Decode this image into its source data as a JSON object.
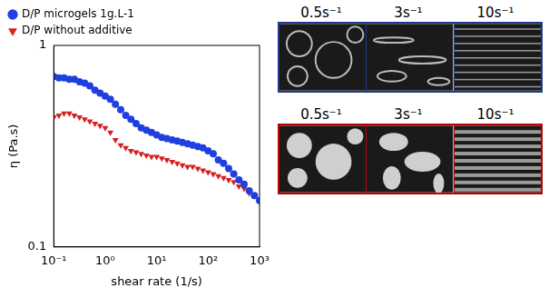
{
  "chart_data": {
    "type": "scatter",
    "x_label": "shear rate (1/s)",
    "y_label": "η (Pa.s)",
    "log": true,
    "grid": false,
    "legend": "top",
    "xlim": [
      0.1,
      1000
    ],
    "ylim": [
      0.1,
      1
    ],
    "xticks": [
      {
        "value": 0.1,
        "label": "10⁻¹"
      },
      {
        "value": 1,
        "label": "10⁰"
      },
      {
        "value": 10,
        "label": "10¹"
      },
      {
        "value": 100,
        "label": "10²"
      },
      {
        "value": 1000,
        "label": "10³"
      }
    ],
    "yticks": [
      0.1,
      1
    ],
    "x": [
      0.1,
      0.126,
      0.158,
      0.2,
      0.251,
      0.316,
      0.398,
      0.501,
      0.631,
      0.794,
      1,
      1.26,
      1.58,
      2,
      2.51,
      3.16,
      3.98,
      5.01,
      6.31,
      7.94,
      10,
      12.6,
      15.8,
      20,
      25.1,
      31.6,
      39.8,
      50.1,
      63.1,
      79.4,
      100,
      126,
      158,
      200,
      251,
      316,
      398,
      501,
      631,
      794,
      1000
    ],
    "series": [
      {
        "name": "D/P microgels 1g.L-1",
        "color": "#1f3fe0",
        "marker": "circle",
        "values": [
          0.7,
          0.69,
          0.69,
          0.68,
          0.68,
          0.66,
          0.65,
          0.63,
          0.6,
          0.58,
          0.56,
          0.54,
          0.51,
          0.48,
          0.45,
          0.43,
          0.41,
          0.39,
          0.38,
          0.37,
          0.36,
          0.35,
          0.345,
          0.34,
          0.335,
          0.33,
          0.325,
          0.32,
          0.315,
          0.31,
          0.3,
          0.29,
          0.27,
          0.26,
          0.245,
          0.23,
          0.215,
          0.205,
          0.19,
          0.18,
          0.17
        ]
      },
      {
        "name": "D/P without additive",
        "color": "#d42020",
        "marker": "triangle-down",
        "values": [
          0.44,
          0.45,
          0.46,
          0.46,
          0.45,
          0.44,
          0.43,
          0.42,
          0.41,
          0.4,
          0.39,
          0.37,
          0.34,
          0.32,
          0.31,
          0.3,
          0.295,
          0.29,
          0.285,
          0.28,
          0.28,
          0.275,
          0.27,
          0.265,
          0.26,
          0.255,
          0.25,
          0.25,
          0.245,
          0.24,
          0.235,
          0.23,
          0.225,
          0.22,
          0.215,
          0.21,
          0.2,
          0.195,
          0.185,
          0.18,
          0.17
        ]
      }
    ]
  },
  "micrographs": {
    "rows": [
      {
        "color": "#1f3a8a",
        "labels": [
          "0.5s⁻¹",
          "3s⁻¹",
          "10s⁻¹"
        ]
      },
      {
        "color": "#c00000",
        "labels": [
          "0.5s⁻¹",
          "3s⁻¹",
          "10s⁻¹"
        ]
      }
    ]
  }
}
